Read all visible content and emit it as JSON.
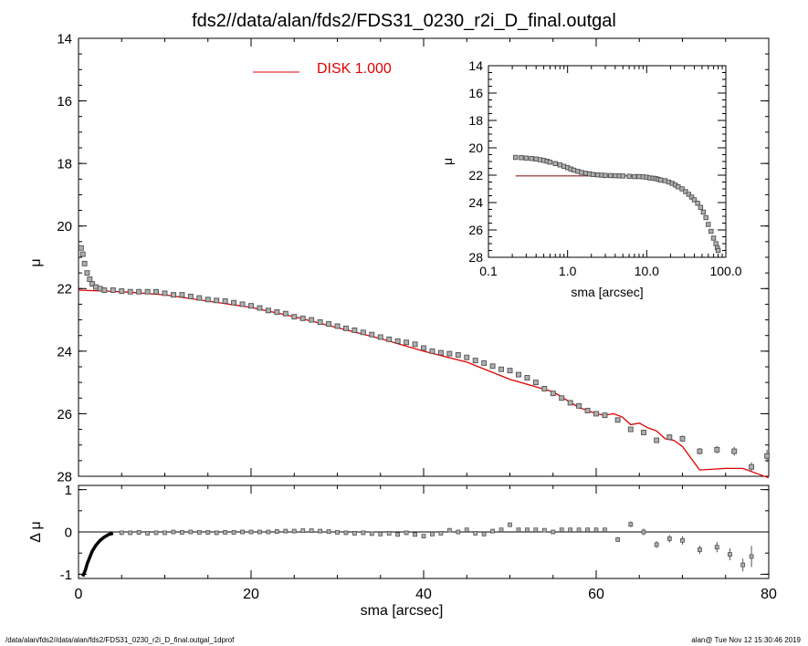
{
  "title": "fds2//data/alan/fds2/FDS31_0230_r2i_D_final.outgal",
  "footer": {
    "left": "/data/alan/fds2//data/alan/fds2/FDS31_0230_r2i_D_final.outgal_1dprof",
    "right": "alan@  Tue Nov 12 15:30:46 2019"
  },
  "colors": {
    "data": "#808080",
    "model": "#e00000",
    "axis": "#000000",
    "inset_model": "#8b2020"
  },
  "chart_data": [
    {
      "type": "scatter",
      "panel": "main",
      "xlim": [
        0,
        80
      ],
      "ylim": [
        28,
        14
      ],
      "y_inverted": true,
      "xlabel": "sma [arcsec]",
      "ylabel": "μ",
      "yticks": [
        "14",
        "16",
        "18",
        "20",
        "22",
        "24",
        "26",
        "28"
      ],
      "xticks": [
        "0",
        "20",
        "40",
        "60",
        "80"
      ],
      "legend": {
        "label": "DISK  1.000",
        "position": "top-center"
      },
      "series": [
        {
          "name": "data",
          "x": [
            0.3,
            0.5,
            0.7,
            1.0,
            1.3,
            1.6,
            2.0,
            2.5,
            3.0,
            4.0,
            5.0,
            6.0,
            7.0,
            8.0,
            9.0,
            10.0,
            11.0,
            12.0,
            13.0,
            14.0,
            15.0,
            16.0,
            17.0,
            18.0,
            19.0,
            20.0,
            21.0,
            22.0,
            23.0,
            24.0,
            25.0,
            26.0,
            27.0,
            28.0,
            29.0,
            30.0,
            31.0,
            32.0,
            33.0,
            34.0,
            35.0,
            36.0,
            37.0,
            38.0,
            39.0,
            40.0,
            41.0,
            42.0,
            43.0,
            44.0,
            45.0,
            46.0,
            47.0,
            48.0,
            49.0,
            50.0,
            51.0,
            52.0,
            53.0,
            54.0,
            55.0,
            56.0,
            57.0,
            58.0,
            59.0,
            60.0,
            61.0,
            62.5,
            64.0,
            65.5,
            67.0,
            68.5,
            70.0,
            72.0,
            74.0,
            76.0,
            78.0,
            79.8
          ],
          "y": [
            20.7,
            20.9,
            21.2,
            21.5,
            21.7,
            21.85,
            21.95,
            22.0,
            22.05,
            22.05,
            22.08,
            22.1,
            22.1,
            22.1,
            22.1,
            22.15,
            22.2,
            22.2,
            22.25,
            22.3,
            22.35,
            22.38,
            22.4,
            22.45,
            22.5,
            22.55,
            22.62,
            22.7,
            22.75,
            22.8,
            22.9,
            22.95,
            23.0,
            23.07,
            23.13,
            23.2,
            23.27,
            23.33,
            23.4,
            23.47,
            23.55,
            23.62,
            23.68,
            23.72,
            23.78,
            23.9,
            24.0,
            24.05,
            24.08,
            24.12,
            24.2,
            24.3,
            24.38,
            24.48,
            24.58,
            24.62,
            24.75,
            24.85,
            25.0,
            25.2,
            25.35,
            25.5,
            25.65,
            25.75,
            25.9,
            26.0,
            26.05,
            26.2,
            26.5,
            26.6,
            26.85,
            26.75,
            26.8,
            27.2,
            27.15,
            27.2,
            27.7,
            27.35
          ],
          "errors": [
            0.02,
            0.02,
            0.02,
            0.02,
            0.02,
            0.02,
            0.02,
            0.02,
            0.02,
            0.02,
            0.02,
            0.02,
            0.02,
            0.02,
            0.02,
            0.02,
            0.02,
            0.02,
            0.02,
            0.02,
            0.02,
            0.02,
            0.02,
            0.02,
            0.02,
            0.02,
            0.02,
            0.02,
            0.02,
            0.02,
            0.02,
            0.02,
            0.02,
            0.02,
            0.02,
            0.02,
            0.02,
            0.02,
            0.02,
            0.02,
            0.02,
            0.02,
            0.02,
            0.02,
            0.02,
            0.02,
            0.02,
            0.02,
            0.02,
            0.02,
            0.02,
            0.02,
            0.02,
            0.02,
            0.02,
            0.03,
            0.03,
            0.03,
            0.03,
            0.03,
            0.03,
            0.04,
            0.04,
            0.04,
            0.05,
            0.05,
            0.05,
            0.06,
            0.07,
            0.08,
            0.08,
            0.09,
            0.1,
            0.1,
            0.12,
            0.14,
            0.15,
            0.2
          ]
        },
        {
          "name": "DISK  1.000",
          "line": true,
          "x": [
            0,
            5,
            10,
            15,
            20,
            25,
            30,
            35,
            40,
            45,
            50,
            55,
            58,
            60,
            61,
            62,
            63,
            64,
            65,
            66,
            67,
            68,
            69,
            70,
            72,
            75,
            77,
            80
          ],
          "y": [
            22.05,
            22.1,
            22.2,
            22.4,
            22.6,
            22.9,
            23.25,
            23.6,
            24.0,
            24.35,
            24.9,
            25.3,
            25.8,
            26.0,
            26.05,
            26.0,
            26.1,
            26.35,
            26.3,
            26.45,
            26.55,
            26.8,
            26.85,
            27.05,
            27.8,
            27.75,
            27.75,
            28.05
          ]
        }
      ]
    },
    {
      "type": "scatter",
      "panel": "residual",
      "xlim": [
        0,
        80
      ],
      "ylim": [
        -1.1,
        1.1
      ],
      "xlabel": "sma [arcsec]",
      "ylabel": "Δ μ",
      "yticks": [
        "-1",
        "0",
        "1"
      ],
      "xticks": [
        "0",
        "20",
        "40",
        "60",
        "80"
      ],
      "series": [
        {
          "name": "residual",
          "x": [
            0.5,
            0.8,
            1.0,
            1.3,
            1.6,
            2.0,
            2.5,
            3.0,
            3.5,
            4.0,
            5.0,
            6.0,
            7.0,
            8.0,
            9.0,
            10.0,
            11.0,
            12.0,
            13.0,
            14.0,
            15.0,
            16.0,
            17.0,
            18.0,
            19.0,
            20.0,
            21.0,
            22.0,
            23.0,
            24.0,
            25.0,
            26.0,
            27.0,
            28.0,
            29.0,
            30.0,
            31.0,
            32.0,
            33.0,
            34.0,
            35.0,
            36.0,
            37.0,
            38.0,
            39.0,
            40.0,
            41.0,
            42.0,
            43.0,
            44.0,
            45.0,
            46.0,
            47.0,
            48.0,
            49.0,
            50.0,
            51.0,
            52.0,
            53.0,
            54.0,
            55.0,
            56.0,
            57.0,
            58.0,
            59.0,
            60.0,
            61.0,
            62.5,
            64.0,
            65.5,
            67.0,
            68.5,
            70.0,
            72.0,
            74.0,
            75.5,
            77.0,
            78.0
          ],
          "y": [
            -1.05,
            -0.9,
            -0.75,
            -0.6,
            -0.45,
            -0.32,
            -0.2,
            -0.12,
            -0.06,
            -0.03,
            -0.02,
            -0.02,
            -0.01,
            -0.03,
            -0.02,
            -0.02,
            0.0,
            -0.01,
            0.0,
            -0.01,
            -0.01,
            -0.02,
            -0.01,
            -0.01,
            0.0,
            0.0,
            0.0,
            0.0,
            0.01,
            0.02,
            0.02,
            0.03,
            0.03,
            0.02,
            0.01,
            -0.01,
            -0.02,
            -0.03,
            -0.02,
            -0.04,
            -0.05,
            -0.03,
            -0.06,
            -0.02,
            -0.06,
            -0.1,
            -0.05,
            -0.03,
            0.04,
            0.0,
            0.05,
            -0.03,
            -0.05,
            0.02,
            0.05,
            0.17,
            0.05,
            0.05,
            0.05,
            0.04,
            0.0,
            0.05,
            0.05,
            0.05,
            0.05,
            0.05,
            0.05,
            -0.18,
            0.18,
            0.0,
            -0.3,
            -0.16,
            -0.2,
            -0.42,
            -0.36,
            -0.53,
            -0.78,
            -0.58
          ],
          "errors": [
            0.02,
            0.02,
            0.02,
            0.02,
            0.02,
            0.02,
            0.02,
            0.02,
            0.02,
            0.02,
            0.02,
            0.02,
            0.02,
            0.02,
            0.02,
            0.02,
            0.02,
            0.02,
            0.02,
            0.02,
            0.02,
            0.02,
            0.02,
            0.02,
            0.02,
            0.02,
            0.02,
            0.02,
            0.02,
            0.02,
            0.02,
            0.02,
            0.02,
            0.02,
            0.02,
            0.02,
            0.02,
            0.02,
            0.02,
            0.02,
            0.02,
            0.02,
            0.02,
            0.02,
            0.02,
            0.02,
            0.02,
            0.02,
            0.02,
            0.02,
            0.02,
            0.02,
            0.02,
            0.02,
            0.02,
            0.02,
            0.02,
            0.02,
            0.02,
            0.03,
            0.03,
            0.03,
            0.03,
            0.03,
            0.04,
            0.04,
            0.04,
            0.06,
            0.07,
            0.08,
            0.08,
            0.09,
            0.1,
            0.1,
            0.12,
            0.14,
            0.15,
            0.25
          ]
        }
      ]
    },
    {
      "type": "scatter",
      "panel": "inset",
      "xscale": "log",
      "xlim": [
        0.1,
        100.0
      ],
      "ylim": [
        28,
        14
      ],
      "y_inverted": true,
      "xlabel": "sma [arcsec]",
      "ylabel": "μ",
      "yticks": [
        "14",
        "16",
        "18",
        "20",
        "22",
        "24",
        "26",
        "28"
      ],
      "xticks": [
        "0.1",
        "1.0",
        "10.0",
        "100.0"
      ],
      "series": [
        {
          "name": "data",
          "x": [
            0.22,
            0.26,
            0.3,
            0.35,
            0.4,
            0.45,
            0.5,
            0.55,
            0.6,
            0.7,
            0.8,
            0.9,
            1.0,
            1.1,
            1.2,
            1.35,
            1.5,
            1.7,
            1.9,
            2.1,
            2.4,
            2.7,
            3.0,
            3.5,
            4.0,
            4.5,
            5.0,
            6.0,
            7.0,
            8.0,
            9.0,
            10.0,
            11.0,
            12.0,
            13.0,
            14.0,
            15.0,
            17.0,
            19.0,
            21.0,
            23.0,
            25.0,
            28.0,
            31.0,
            34.0,
            37.0,
            40.0,
            44.0,
            48.0,
            52.0,
            56.0,
            60.0,
            65.0,
            70.0,
            75.0,
            78.0,
            80.0
          ],
          "y": [
            20.7,
            20.72,
            20.75,
            20.78,
            20.82,
            20.87,
            20.92,
            20.98,
            21.05,
            21.15,
            21.25,
            21.35,
            21.45,
            21.55,
            21.63,
            21.72,
            21.8,
            21.86,
            21.91,
            21.95,
            21.98,
            22.0,
            22.02,
            22.03,
            22.04,
            22.05,
            22.06,
            22.08,
            22.1,
            22.1,
            22.12,
            22.15,
            22.2,
            22.22,
            22.25,
            22.3,
            22.35,
            22.4,
            22.5,
            22.6,
            22.72,
            22.85,
            23.0,
            23.2,
            23.4,
            23.6,
            23.8,
            24.05,
            24.35,
            24.7,
            25.1,
            25.6,
            26.1,
            26.6,
            27.0,
            27.3,
            27.5
          ]
        },
        {
          "name": "model",
          "line": true,
          "x": [
            0.22,
            1.0,
            3.0,
            6.0,
            10.0
          ],
          "y": [
            22.05,
            22.05,
            22.05,
            22.05,
            22.05
          ]
        }
      ]
    }
  ]
}
